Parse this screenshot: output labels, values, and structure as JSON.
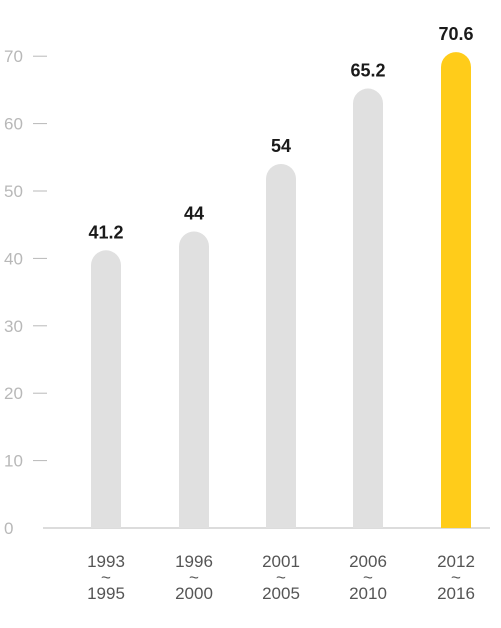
{
  "chart_data": {
    "type": "bar",
    "title": "",
    "xlabel": "",
    "ylabel": "",
    "ylim": [
      0,
      75
    ],
    "yticks": [
      "0",
      "10",
      "20",
      "30",
      "40",
      "50",
      "60",
      "70"
    ],
    "categories": [
      {
        "top": "1993",
        "sep": "~",
        "bottom": "1995"
      },
      {
        "top": "1996",
        "sep": "~",
        "bottom": "2000"
      },
      {
        "top": "2001",
        "sep": "~",
        "bottom": "2005"
      },
      {
        "top": "2006",
        "sep": "~",
        "bottom": "2010"
      },
      {
        "top": "2012",
        "sep": "~",
        "bottom": "2016"
      }
    ],
    "values": [
      41.2,
      44,
      54,
      65.2,
      70.6
    ],
    "value_labels": [
      "41.2",
      "44",
      "54",
      "65.2",
      "70.6"
    ],
    "highlight_index": 4,
    "grid": false,
    "legend": "none"
  },
  "colors": {
    "bar": "#e0e0e0",
    "highlight": "#ffcc1a",
    "axis": "#b8b8b8"
  }
}
